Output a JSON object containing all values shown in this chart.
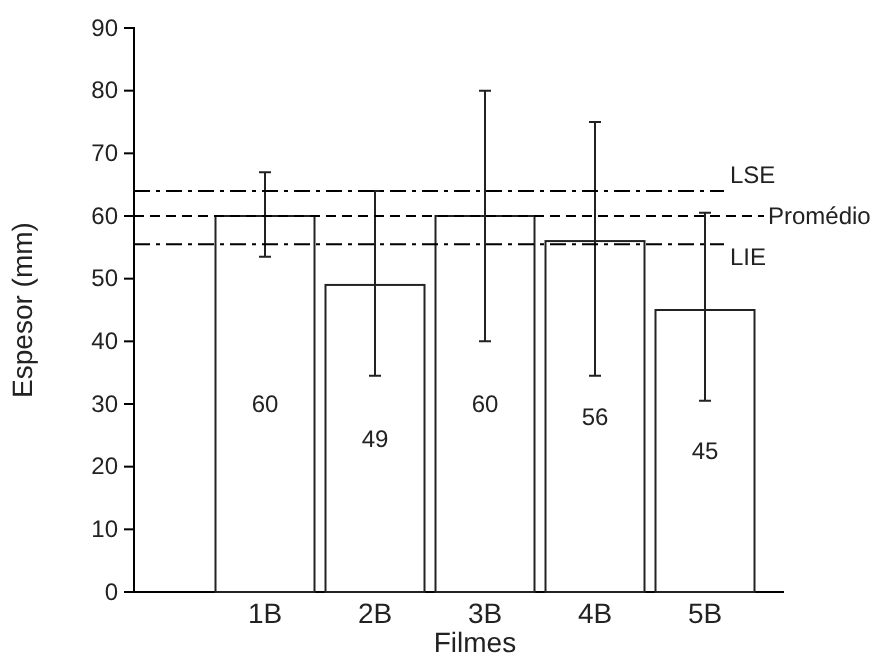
{
  "chart_data": {
    "type": "bar",
    "xlabel": "Filmes",
    "ylabel": "Espesor  (mm)",
    "categories": [
      "1B",
      "2B",
      "3B",
      "4B",
      "5B"
    ],
    "values": [
      60,
      49,
      60,
      56,
      45
    ],
    "color": "#ffffff",
    "errors": [
      [
        53.5,
        67
      ],
      [
        34.5,
        64
      ],
      [
        40,
        80
      ],
      [
        34.5,
        75
      ],
      [
        30.5,
        60.5
      ]
    ],
    "data_labels": true,
    "ylim": [
      0,
      90
    ],
    "yticks": [
      0,
      10,
      20,
      30,
      40,
      50,
      60,
      70,
      80,
      90
    ],
    "grid": false,
    "ref_lines": [
      {
        "axis": "y",
        "value": 64,
        "label": "LSE",
        "color": "#000000",
        "line_style": "dashdot"
      },
      {
        "axis": "y",
        "value": 60,
        "label": "Promédio",
        "color": "#000000",
        "line_style": "dashed"
      },
      {
        "axis": "y",
        "value": 55.5,
        "label": "LIE",
        "color": "#000000",
        "line_style": "dashdot"
      }
    ]
  }
}
